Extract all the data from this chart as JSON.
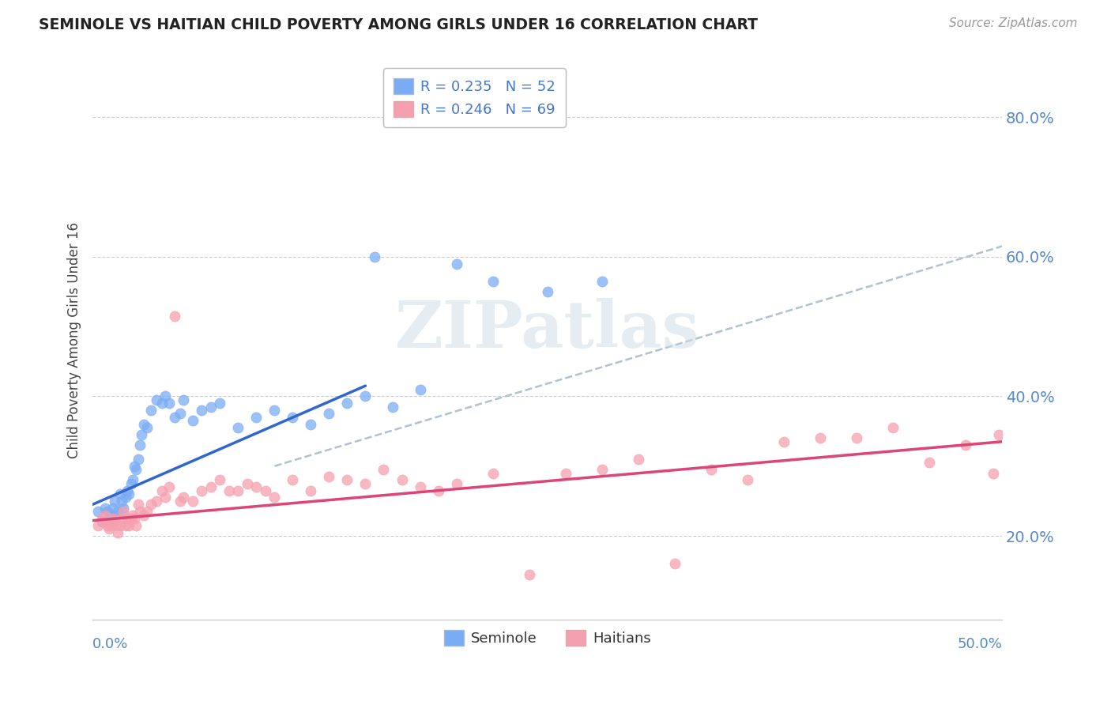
{
  "title": "SEMINOLE VS HAITIAN CHILD POVERTY AMONG GIRLS UNDER 16 CORRELATION CHART",
  "source": "Source: ZipAtlas.com",
  "ylabel": "Child Poverty Among Girls Under 16",
  "yticks": [
    0.2,
    0.4,
    0.6,
    0.8
  ],
  "ytick_labels": [
    "20.0%",
    "40.0%",
    "60.0%",
    "80.0%"
  ],
  "xlim": [
    0.0,
    0.5
  ],
  "ylim": [
    0.08,
    0.88
  ],
  "legend_entry_1": "R = 0.235   N = 52",
  "legend_entry_2": "R = 0.246   N = 69",
  "legend_labels": [
    "Seminole",
    "Haitians"
  ],
  "seminole_color": "#7aacf5",
  "haitian_color": "#f5a0b0",
  "seminole_line_color": "#3366cc",
  "haitian_line_color": "#dd4477",
  "dash_line_color": "#aabbcc",
  "watermark_text": "ZIPatlas",
  "seminole_x": [
    0.003,
    0.005,
    0.007,
    0.008,
    0.009,
    0.01,
    0.011,
    0.012,
    0.013,
    0.014,
    0.015,
    0.016,
    0.017,
    0.018,
    0.019,
    0.02,
    0.021,
    0.022,
    0.023,
    0.024,
    0.025,
    0.026,
    0.027,
    0.028,
    0.03,
    0.032,
    0.035,
    0.038,
    0.04,
    0.042,
    0.045,
    0.048,
    0.05,
    0.055,
    0.06,
    0.065,
    0.07,
    0.08,
    0.09,
    0.1,
    0.11,
    0.12,
    0.13,
    0.14,
    0.15,
    0.155,
    0.165,
    0.18,
    0.2,
    0.22,
    0.25,
    0.28
  ],
  "seminole_y": [
    0.235,
    0.22,
    0.24,
    0.235,
    0.225,
    0.23,
    0.24,
    0.25,
    0.23,
    0.235,
    0.26,
    0.25,
    0.24,
    0.255,
    0.265,
    0.26,
    0.275,
    0.28,
    0.3,
    0.295,
    0.31,
    0.33,
    0.345,
    0.36,
    0.355,
    0.38,
    0.395,
    0.39,
    0.4,
    0.39,
    0.37,
    0.375,
    0.395,
    0.365,
    0.38,
    0.385,
    0.39,
    0.355,
    0.37,
    0.38,
    0.37,
    0.36,
    0.375,
    0.39,
    0.4,
    0.6,
    0.385,
    0.41,
    0.59,
    0.565,
    0.55,
    0.565
  ],
  "haitian_x": [
    0.003,
    0.005,
    0.006,
    0.007,
    0.008,
    0.009,
    0.01,
    0.011,
    0.012,
    0.013,
    0.014,
    0.015,
    0.016,
    0.017,
    0.018,
    0.019,
    0.02,
    0.021,
    0.022,
    0.023,
    0.024,
    0.025,
    0.026,
    0.028,
    0.03,
    0.032,
    0.035,
    0.038,
    0.04,
    0.042,
    0.045,
    0.048,
    0.05,
    0.055,
    0.06,
    0.065,
    0.07,
    0.075,
    0.08,
    0.085,
    0.09,
    0.095,
    0.1,
    0.11,
    0.12,
    0.13,
    0.14,
    0.15,
    0.16,
    0.17,
    0.18,
    0.19,
    0.2,
    0.22,
    0.24,
    0.26,
    0.28,
    0.3,
    0.32,
    0.34,
    0.36,
    0.38,
    0.4,
    0.42,
    0.44,
    0.46,
    0.48,
    0.495,
    0.498
  ],
  "haitian_y": [
    0.215,
    0.225,
    0.22,
    0.23,
    0.215,
    0.21,
    0.215,
    0.225,
    0.22,
    0.215,
    0.205,
    0.215,
    0.225,
    0.235,
    0.215,
    0.225,
    0.215,
    0.225,
    0.23,
    0.225,
    0.215,
    0.245,
    0.235,
    0.23,
    0.235,
    0.245,
    0.25,
    0.265,
    0.255,
    0.27,
    0.515,
    0.25,
    0.255,
    0.25,
    0.265,
    0.27,
    0.28,
    0.265,
    0.265,
    0.275,
    0.27,
    0.265,
    0.255,
    0.28,
    0.265,
    0.285,
    0.28,
    0.275,
    0.295,
    0.28,
    0.27,
    0.265,
    0.275,
    0.29,
    0.145,
    0.29,
    0.295,
    0.31,
    0.16,
    0.295,
    0.28,
    0.335,
    0.34,
    0.34,
    0.355,
    0.305,
    0.33,
    0.29,
    0.345
  ],
  "seminole_trend_x": [
    0.0,
    0.15
  ],
  "seminole_trend_y": [
    0.245,
    0.415
  ],
  "haitian_trend_x": [
    0.0,
    0.5
  ],
  "haitian_trend_y": [
    0.222,
    0.335
  ],
  "dash_trend_x": [
    0.1,
    0.5
  ],
  "dash_trend_y": [
    0.3,
    0.615
  ]
}
